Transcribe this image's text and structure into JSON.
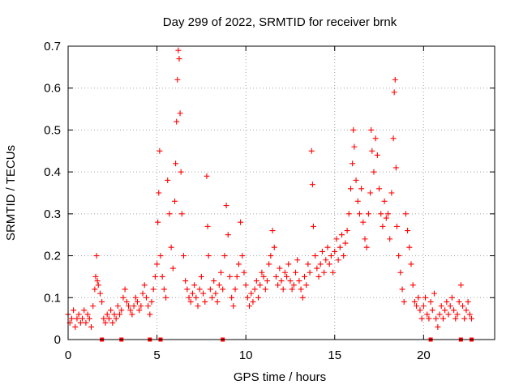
{
  "chart_data": {
    "type": "scatter",
    "title": "Day 299 of 2022, SRMTID for receiver brnk",
    "xlabel": "GPS time / hours",
    "ylabel": "SRMTID / TECUs",
    "xlim": [
      0,
      24
    ],
    "ylim": [
      0,
      0.7
    ],
    "x_ticks": [
      0,
      5,
      10,
      15,
      20
    ],
    "x_tick_labels": [
      "0",
      "5",
      "10",
      "15",
      "20"
    ],
    "y_ticks": [
      0,
      0.1,
      0.2,
      0.3,
      0.4,
      0.5,
      0.6,
      0.7
    ],
    "y_tick_labels": [
      "0",
      "0.1",
      "0.2",
      "0.3",
      "0.4",
      "0.5",
      "0.6",
      "0.7"
    ],
    "grid": true,
    "marker": "+",
    "color": "#ff0000",
    "series": [
      {
        "name": "SRMTID",
        "marker": "+",
        "points": [
          [
            0.0,
            0.06
          ],
          [
            0.1,
            0.04
          ],
          [
            0.2,
            0.05
          ],
          [
            0.3,
            0.07
          ],
          [
            0.4,
            0.03
          ],
          [
            0.5,
            0.05
          ],
          [
            0.6,
            0.06
          ],
          [
            0.7,
            0.04
          ],
          [
            0.8,
            0.05
          ],
          [
            0.9,
            0.07
          ],
          [
            1.0,
            0.04
          ],
          [
            1.1,
            0.06
          ],
          [
            1.2,
            0.05
          ],
          [
            1.3,
            0.03
          ],
          [
            1.4,
            0.08
          ],
          [
            1.5,
            0.12
          ],
          [
            1.55,
            0.15
          ],
          [
            1.6,
            0.2
          ],
          [
            1.65,
            0.14
          ],
          [
            1.7,
            0.13
          ],
          [
            1.8,
            0.11
          ],
          [
            1.9,
            0.09
          ],
          [
            2.0,
            0.05
          ],
          [
            2.1,
            0.04
          ],
          [
            2.2,
            0.06
          ],
          [
            2.3,
            0.05
          ],
          [
            2.4,
            0.07
          ],
          [
            2.5,
            0.04
          ],
          [
            2.6,
            0.06
          ],
          [
            2.7,
            0.05
          ],
          [
            2.8,
            0.08
          ],
          [
            2.9,
            0.06
          ],
          [
            3.0,
            0.07
          ],
          [
            3.1,
            0.1
          ],
          [
            3.2,
            0.12
          ],
          [
            3.3,
            0.09
          ],
          [
            3.4,
            0.08
          ],
          [
            3.5,
            0.07
          ],
          [
            3.6,
            0.06
          ],
          [
            3.7,
            0.08
          ],
          [
            3.8,
            0.1
          ],
          [
            3.9,
            0.09
          ],
          [
            4.0,
            0.07
          ],
          [
            4.1,
            0.08
          ],
          [
            4.2,
            0.11
          ],
          [
            4.3,
            0.13
          ],
          [
            4.4,
            0.1
          ],
          [
            4.5,
            0.08
          ],
          [
            4.6,
            0.06
          ],
          [
            4.7,
            0.09
          ],
          [
            4.8,
            0.12
          ],
          [
            4.9,
            0.15
          ],
          [
            5.0,
            0.18
          ],
          [
            5.05,
            0.28
          ],
          [
            5.1,
            0.35
          ],
          [
            5.15,
            0.45
          ],
          [
            5.2,
            0.2
          ],
          [
            5.3,
            0.15
          ],
          [
            5.4,
            0.12
          ],
          [
            5.5,
            0.1
          ],
          [
            5.6,
            0.38
          ],
          [
            5.7,
            0.3
          ],
          [
            5.8,
            0.22
          ],
          [
            5.9,
            0.17
          ],
          [
            6.0,
            0.33
          ],
          [
            6.05,
            0.42
          ],
          [
            6.1,
            0.52
          ],
          [
            6.15,
            0.62
          ],
          [
            6.2,
            0.69
          ],
          [
            6.25,
            0.67
          ],
          [
            6.3,
            0.54
          ],
          [
            6.35,
            0.4
          ],
          [
            6.4,
            0.3
          ],
          [
            6.5,
            0.2
          ],
          [
            6.6,
            0.14
          ],
          [
            6.7,
            0.12
          ],
          [
            6.8,
            0.1
          ],
          [
            6.9,
            0.09
          ],
          [
            7.0,
            0.11
          ],
          [
            7.1,
            0.13
          ],
          [
            7.2,
            0.1
          ],
          [
            7.3,
            0.08
          ],
          [
            7.4,
            0.12
          ],
          [
            7.5,
            0.15
          ],
          [
            7.6,
            0.11
          ],
          [
            7.7,
            0.09
          ],
          [
            7.8,
            0.39
          ],
          [
            7.85,
            0.27
          ],
          [
            7.9,
            0.2
          ],
          [
            8.0,
            0.12
          ],
          [
            8.1,
            0.1
          ],
          [
            8.2,
            0.14
          ],
          [
            8.3,
            0.11
          ],
          [
            8.4,
            0.09
          ],
          [
            8.5,
            0.13
          ],
          [
            8.6,
            0.16
          ],
          [
            8.7,
            0.12
          ],
          [
            8.8,
            0.2
          ],
          [
            8.9,
            0.32
          ],
          [
            9.0,
            0.25
          ],
          [
            9.1,
            0.15
          ],
          [
            9.2,
            0.1
          ],
          [
            9.3,
            0.08
          ],
          [
            9.4,
            0.12
          ],
          [
            9.5,
            0.15
          ],
          [
            9.6,
            0.18
          ],
          [
            9.7,
            0.28
          ],
          [
            9.8,
            0.2
          ],
          [
            9.9,
            0.16
          ],
          [
            10.0,
            0.13
          ],
          [
            10.1,
            0.1
          ],
          [
            10.2,
            0.08
          ],
          [
            10.3,
            0.11
          ],
          [
            10.4,
            0.09
          ],
          [
            10.5,
            0.12
          ],
          [
            10.6,
            0.14
          ],
          [
            10.7,
            0.1
          ],
          [
            10.8,
            0.13
          ],
          [
            10.9,
            0.16
          ],
          [
            11.0,
            0.15
          ],
          [
            11.1,
            0.12
          ],
          [
            11.2,
            0.14
          ],
          [
            11.3,
            0.18
          ],
          [
            11.4,
            0.2
          ],
          [
            11.5,
            0.26
          ],
          [
            11.6,
            0.22
          ],
          [
            11.7,
            0.15
          ],
          [
            11.8,
            0.13
          ],
          [
            11.9,
            0.17
          ],
          [
            12.0,
            0.14
          ],
          [
            12.1,
            0.12
          ],
          [
            12.2,
            0.16
          ],
          [
            12.3,
            0.15
          ],
          [
            12.4,
            0.18
          ],
          [
            12.5,
            0.14
          ],
          [
            12.6,
            0.12
          ],
          [
            12.7,
            0.13
          ],
          [
            12.8,
            0.16
          ],
          [
            12.9,
            0.19
          ],
          [
            13.0,
            0.14
          ],
          [
            13.1,
            0.12
          ],
          [
            13.2,
            0.1
          ],
          [
            13.3,
            0.15
          ],
          [
            13.4,
            0.13
          ],
          [
            13.5,
            0.18
          ],
          [
            13.6,
            0.16
          ],
          [
            13.7,
            0.45
          ],
          [
            13.75,
            0.37
          ],
          [
            13.8,
            0.27
          ],
          [
            13.9,
            0.2
          ],
          [
            14.0,
            0.17
          ],
          [
            14.1,
            0.15
          ],
          [
            14.2,
            0.18
          ],
          [
            14.3,
            0.21
          ],
          [
            14.4,
            0.16
          ],
          [
            14.5,
            0.19
          ],
          [
            14.6,
            0.22
          ],
          [
            14.7,
            0.18
          ],
          [
            14.8,
            0.2
          ],
          [
            14.9,
            0.16
          ],
          [
            15.0,
            0.21
          ],
          [
            15.1,
            0.24
          ],
          [
            15.2,
            0.19
          ],
          [
            15.3,
            0.22
          ],
          [
            15.4,
            0.25
          ],
          [
            15.5,
            0.2
          ],
          [
            15.6,
            0.23
          ],
          [
            15.7,
            0.26
          ],
          [
            15.8,
            0.3
          ],
          [
            15.9,
            0.36
          ],
          [
            16.0,
            0.42
          ],
          [
            16.05,
            0.5
          ],
          [
            16.1,
            0.46
          ],
          [
            16.2,
            0.38
          ],
          [
            16.3,
            0.33
          ],
          [
            16.4,
            0.3
          ],
          [
            16.5,
            0.36
          ],
          [
            16.6,
            0.28
          ],
          [
            16.7,
            0.24
          ],
          [
            16.8,
            0.22
          ],
          [
            16.9,
            0.3
          ],
          [
            17.0,
            0.35
          ],
          [
            17.05,
            0.5
          ],
          [
            17.1,
            0.45
          ],
          [
            17.2,
            0.4
          ],
          [
            17.3,
            0.48
          ],
          [
            17.4,
            0.44
          ],
          [
            17.5,
            0.36
          ],
          [
            17.6,
            0.3
          ],
          [
            17.7,
            0.27
          ],
          [
            17.8,
            0.33
          ],
          [
            17.9,
            0.29
          ],
          [
            18.0,
            0.3
          ],
          [
            18.1,
            0.24
          ],
          [
            18.2,
            0.35
          ],
          [
            18.3,
            0.48
          ],
          [
            18.35,
            0.59
          ],
          [
            18.4,
            0.62
          ],
          [
            18.45,
            0.41
          ],
          [
            18.5,
            0.27
          ],
          [
            18.6,
            0.2
          ],
          [
            18.7,
            0.16
          ],
          [
            18.8,
            0.12
          ],
          [
            18.9,
            0.09
          ],
          [
            19.0,
            0.3
          ],
          [
            19.1,
            0.26
          ],
          [
            19.2,
            0.22
          ],
          [
            19.3,
            0.18
          ],
          [
            19.4,
            0.13
          ],
          [
            19.5,
            0.09
          ],
          [
            19.6,
            0.08
          ],
          [
            19.7,
            0.1
          ],
          [
            19.8,
            0.07
          ],
          [
            19.9,
            0.05
          ],
          [
            20.0,
            0.08
          ],
          [
            20.1,
            0.1
          ],
          [
            20.2,
            0.06
          ],
          [
            20.3,
            0.05
          ],
          [
            20.4,
            0.09
          ],
          [
            20.5,
            0.07
          ],
          [
            20.6,
            0.11
          ],
          [
            20.7,
            0.05
          ],
          [
            20.8,
            0.03
          ],
          [
            20.9,
            0.06
          ],
          [
            21.0,
            0.08
          ],
          [
            21.1,
            0.05
          ],
          [
            21.2,
            0.07
          ],
          [
            21.3,
            0.09
          ],
          [
            21.4,
            0.06
          ],
          [
            21.5,
            0.08
          ],
          [
            21.6,
            0.1
          ],
          [
            21.7,
            0.07
          ],
          [
            21.8,
            0.05
          ],
          [
            21.9,
            0.06
          ],
          [
            22.0,
            0.09
          ],
          [
            22.1,
            0.13
          ],
          [
            22.2,
            0.08
          ],
          [
            22.3,
            0.05
          ],
          [
            22.4,
            0.07
          ],
          [
            22.5,
            0.09
          ],
          [
            22.6,
            0.06
          ],
          [
            22.7,
            0.05
          ]
        ]
      }
    ],
    "gap_markers_x": [
      1.9,
      3.0,
      4.6,
      5.2,
      8.7,
      20.4,
      22.1,
      22.7
    ]
  }
}
